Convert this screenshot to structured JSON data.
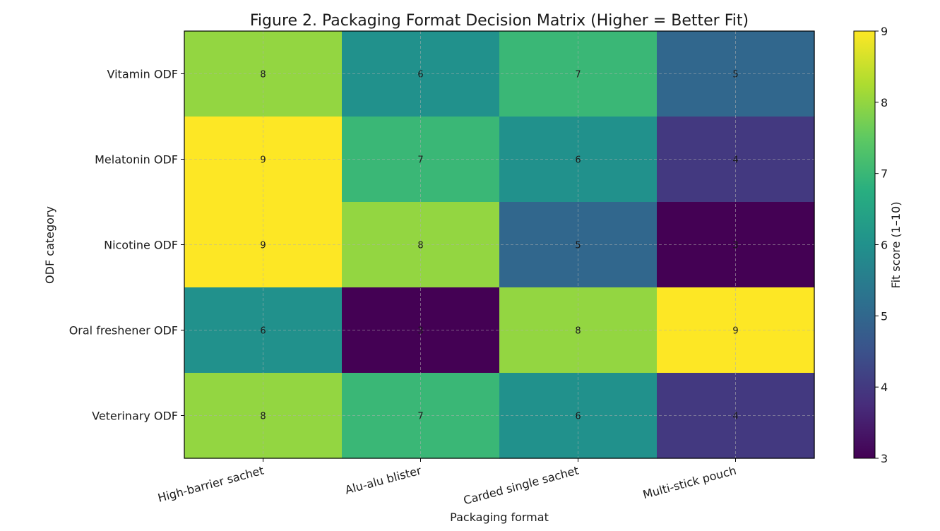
{
  "chart_data": {
    "type": "heatmap",
    "title": "Figure 2. Packaging Format Decision Matrix (Higher = Better Fit)",
    "xlabel": "Packaging format",
    "ylabel": "ODF category",
    "x_categories": [
      "High-barrier sachet",
      "Alu-alu blister",
      "Carded single sachet",
      "Multi-stick pouch"
    ],
    "y_categories": [
      "Vitamin ODF",
      "Melatonin ODF",
      "Nicotine ODF",
      "Oral freshener ODF",
      "Veterinary ODF"
    ],
    "values": [
      [
        8,
        6,
        7,
        5
      ],
      [
        9,
        7,
        6,
        4
      ],
      [
        9,
        8,
        5,
        3
      ],
      [
        6,
        3,
        8,
        9
      ],
      [
        8,
        7,
        6,
        4
      ]
    ],
    "colorbar": {
      "label": "Fit score (1–10)",
      "range": [
        3,
        9
      ],
      "ticks": [
        3,
        4,
        5,
        6,
        7,
        8,
        9
      ],
      "colormap": "viridis"
    },
    "grid": true
  }
}
